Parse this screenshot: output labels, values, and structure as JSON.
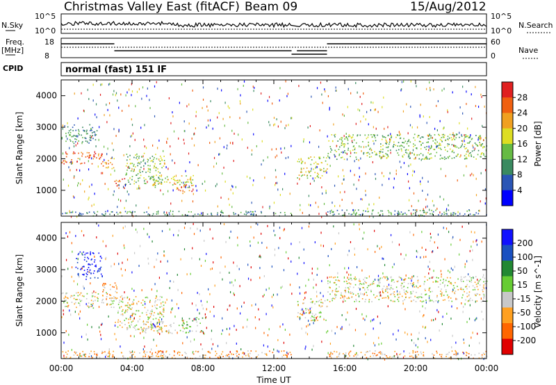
{
  "header": {
    "title": "Christmas Valley East (fitACF)",
    "beam": "Beam 09",
    "date": "15/Aug/2012"
  },
  "nsky_strip": {
    "label": "N.Sky",
    "tick_top": "10^5",
    "tick_bottom": "10^0",
    "right_label": "N.Search",
    "right_tick_top": "10^5",
    "right_tick_bottom": "10^0"
  },
  "freq_strip": {
    "label_line1": "Freq.",
    "label_line2": "[MHz]",
    "tick_top": "18",
    "tick_bottom": "8",
    "right_label": "Nave",
    "right_tick_top": "60",
    "right_tick_bottom": "0"
  },
  "cpid": {
    "label": "CPID",
    "value": "normal (fast) 151 IF"
  },
  "time_axis": {
    "label": "Time UT",
    "ticks": [
      "00:00",
      "04:00",
      "08:00",
      "12:00",
      "16:00",
      "20:00",
      "00:00"
    ]
  },
  "colors": {
    "power": [
      "#0000ff",
      "#2a55b5",
      "#3a8a60",
      "#66bb44",
      "#dddd22",
      "#f0a020",
      "#f06010",
      "#e02020"
    ],
    "velocity": [
      "#e00000",
      "#ff6600",
      "#ffa020",
      "#c8c8c8",
      "#66cc33",
      "#228833",
      "#1a50c0",
      "#1010ff"
    ]
  },
  "chart_data": [
    {
      "type": "heatmap",
      "name": "power",
      "ylabel": "Slant Range [km]",
      "xlabel": "",
      "ylim": [
        180,
        4500
      ],
      "xlim_hours": [
        0,
        24
      ],
      "yticks": [
        "1000",
        "2000",
        "3000",
        "4000"
      ],
      "colorbar": {
        "label": "Power [dB]",
        "ticks": [
          "4",
          "8",
          "12",
          "16",
          "20",
          "24",
          "28"
        ]
      },
      "bands": [
        {
          "t0": 0.0,
          "t1": 2.0,
          "r0": 2500,
          "r1": 3100,
          "level": 2
        },
        {
          "t0": 0.0,
          "t1": 2.3,
          "r0": 1850,
          "r1": 2250,
          "level": 6
        },
        {
          "t0": 2.3,
          "t1": 3.0,
          "r0": 1700,
          "r1": 2100,
          "level": 5
        },
        {
          "t0": 3.0,
          "t1": 3.6,
          "r0": 1000,
          "r1": 1400,
          "level": 6
        },
        {
          "t0": 3.6,
          "t1": 5.8,
          "r0": 1200,
          "r1": 2200,
          "level": 3
        },
        {
          "t0": 5.0,
          "t1": 7.5,
          "r0": 1100,
          "r1": 1500,
          "level": 4
        },
        {
          "t0": 6.5,
          "t1": 7.4,
          "r0": 900,
          "r1": 1200,
          "level": 6
        },
        {
          "t0": 0.0,
          "t1": 13.0,
          "r0": 200,
          "r1": 350,
          "level": 2
        },
        {
          "t0": 13.3,
          "t1": 15.0,
          "r0": 1400,
          "r1": 2100,
          "level": 4
        },
        {
          "t0": 15.0,
          "t1": 24.0,
          "r0": 2000,
          "r1": 2800,
          "level": 3
        },
        {
          "t0": 15.0,
          "t1": 24.0,
          "r0": 200,
          "r1": 400,
          "level": 2
        }
      ]
    },
    {
      "type": "heatmap",
      "name": "velocity",
      "ylabel": "Slant Range [km]",
      "xlabel": "Time UT",
      "ylim": [
        180,
        4500
      ],
      "xlim_hours": [
        0,
        24
      ],
      "yticks": [
        "1000",
        "2000",
        "3000",
        "4000"
      ],
      "colorbar": {
        "label": "Velocity [m s^-1]",
        "ticks": [
          "200",
          "100",
          "50",
          "15",
          "-15",
          "-50",
          "-100",
          "-200"
        ]
      },
      "bands": [
        {
          "t0": 0.0,
          "t1": 3.0,
          "r0": 1800,
          "r1": 2300,
          "level": 3
        },
        {
          "t0": 0.8,
          "t1": 2.3,
          "r0": 2700,
          "r1": 3600,
          "level": 7
        },
        {
          "t0": 2.3,
          "t1": 3.2,
          "r0": 2100,
          "r1": 2600,
          "level": 2
        },
        {
          "t0": 3.0,
          "t1": 5.8,
          "r0": 1100,
          "r1": 2200,
          "level": 3
        },
        {
          "t0": 4.5,
          "t1": 7.0,
          "r0": 1000,
          "r1": 1400,
          "level": 3
        },
        {
          "t0": 6.8,
          "t1": 8.0,
          "r0": 1000,
          "r1": 1500,
          "level": 4
        },
        {
          "t0": 0.0,
          "t1": 13.0,
          "r0": 200,
          "r1": 450,
          "level": 2
        },
        {
          "t0": 15.0,
          "t1": 24.0,
          "r0": 2000,
          "r1": 2800,
          "level": 3
        },
        {
          "t0": 15.0,
          "t1": 24.0,
          "r0": 200,
          "r1": 450,
          "level": 2
        },
        {
          "t0": 13.3,
          "t1": 15.0,
          "r0": 1400,
          "r1": 2100,
          "level": 3
        }
      ]
    }
  ]
}
